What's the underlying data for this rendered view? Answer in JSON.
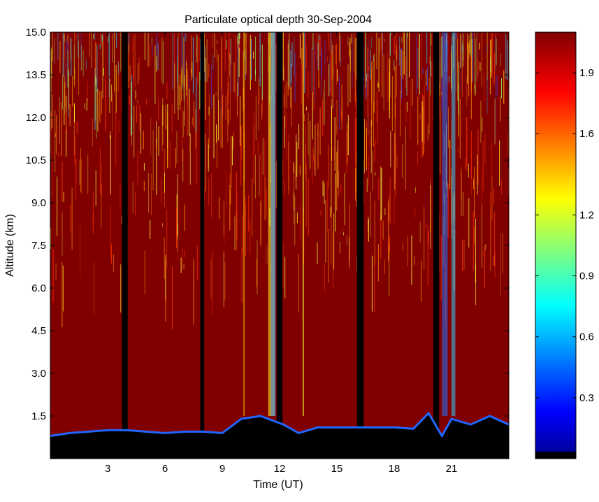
{
  "chart_data": {
    "type": "heatmap",
    "title": "Particulate optical depth  30-Sep-2004",
    "xlabel": "Time (UT)",
    "ylabel": "Altitude (km)",
    "xlim": [
      0,
      24
    ],
    "ylim": [
      0,
      15
    ],
    "x_ticks": [
      "3",
      "6",
      "9",
      "12",
      "15",
      "18",
      "21"
    ],
    "y_ticks": [
      "1.5",
      "3.0",
      "4.5",
      "6.0",
      "7.5",
      "9.0",
      "10.5",
      "12.0",
      "13.5",
      "15.0"
    ],
    "colorbar": {
      "range": [
        0,
        2.1
      ],
      "ticks": [
        "0.3",
        "0.6",
        "0.9",
        "1.2",
        "1.6",
        "1.9"
      ],
      "colormap": "jet"
    },
    "data_gaps_hours": [
      [
        3.75,
        4.05
      ],
      [
        7.85,
        8.05
      ],
      [
        11.85,
        12.15
      ],
      [
        16.05,
        16.4
      ],
      [
        20.05,
        20.35
      ]
    ],
    "boundary_layer_top_km": [
      [
        0,
        0.8
      ],
      [
        1,
        0.9
      ],
      [
        2,
        0.95
      ],
      [
        3,
        1.0
      ],
      [
        4,
        1.0
      ],
      [
        5,
        0.95
      ],
      [
        6,
        0.9
      ],
      [
        7,
        0.95
      ],
      [
        8,
        0.95
      ],
      [
        9,
        0.9
      ],
      [
        10,
        1.4
      ],
      [
        11,
        1.5
      ],
      [
        11.8,
        1.3
      ],
      [
        12.2,
        1.2
      ],
      [
        13,
        0.9
      ],
      [
        14,
        1.1
      ],
      [
        15,
        1.1
      ],
      [
        16,
        1.1
      ],
      [
        17,
        1.1
      ],
      [
        18,
        1.1
      ],
      [
        19,
        1.05
      ],
      [
        19.8,
        1.6
      ],
      [
        20.5,
        0.8
      ],
      [
        21,
        1.4
      ],
      [
        22,
        1.2
      ],
      [
        23,
        1.5
      ],
      [
        24,
        1.2
      ]
    ],
    "colors": {
      "saturated": "#800000",
      "gap": "#000000"
    }
  }
}
